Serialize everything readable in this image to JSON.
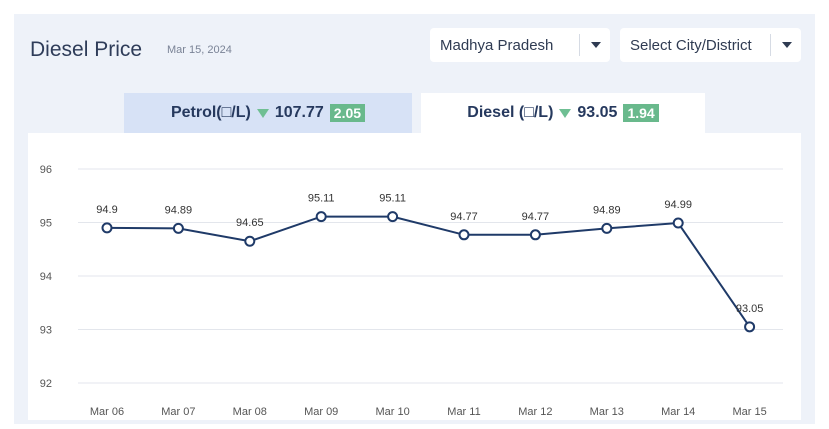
{
  "header": {
    "title": "Diesel Price",
    "date": "Mar 15, 2024"
  },
  "filters": {
    "state": "Madhya Pradesh",
    "city": "Select City/District"
  },
  "tabs": [
    {
      "label": "Petrol(□/L)",
      "price": "107.77",
      "change": "2.05",
      "trend": "down",
      "active": false
    },
    {
      "label": "Diesel (□/L)",
      "price": "93.05",
      "change": "1.94",
      "trend": "down",
      "active": true
    }
  ],
  "colors": {
    "line": "#1f3a68",
    "badge": "#69b98c",
    "arrow": "#6fbf93"
  },
  "chart_data": {
    "type": "line",
    "title": "",
    "xlabel": "",
    "ylabel": "",
    "categories": [
      "Mar 06",
      "Mar 07",
      "Mar 08",
      "Mar 09",
      "Mar 10",
      "Mar 11",
      "Mar 12",
      "Mar 13",
      "Mar 14",
      "Mar 15"
    ],
    "values": [
      94.9,
      94.89,
      94.65,
      95.11,
      95.11,
      94.77,
      94.77,
      94.89,
      94.99,
      93.05
    ],
    "ylim": [
      92,
      96
    ],
    "yticks": [
      92,
      93,
      94,
      95,
      96
    ],
    "grid": true,
    "data_labels": true
  }
}
